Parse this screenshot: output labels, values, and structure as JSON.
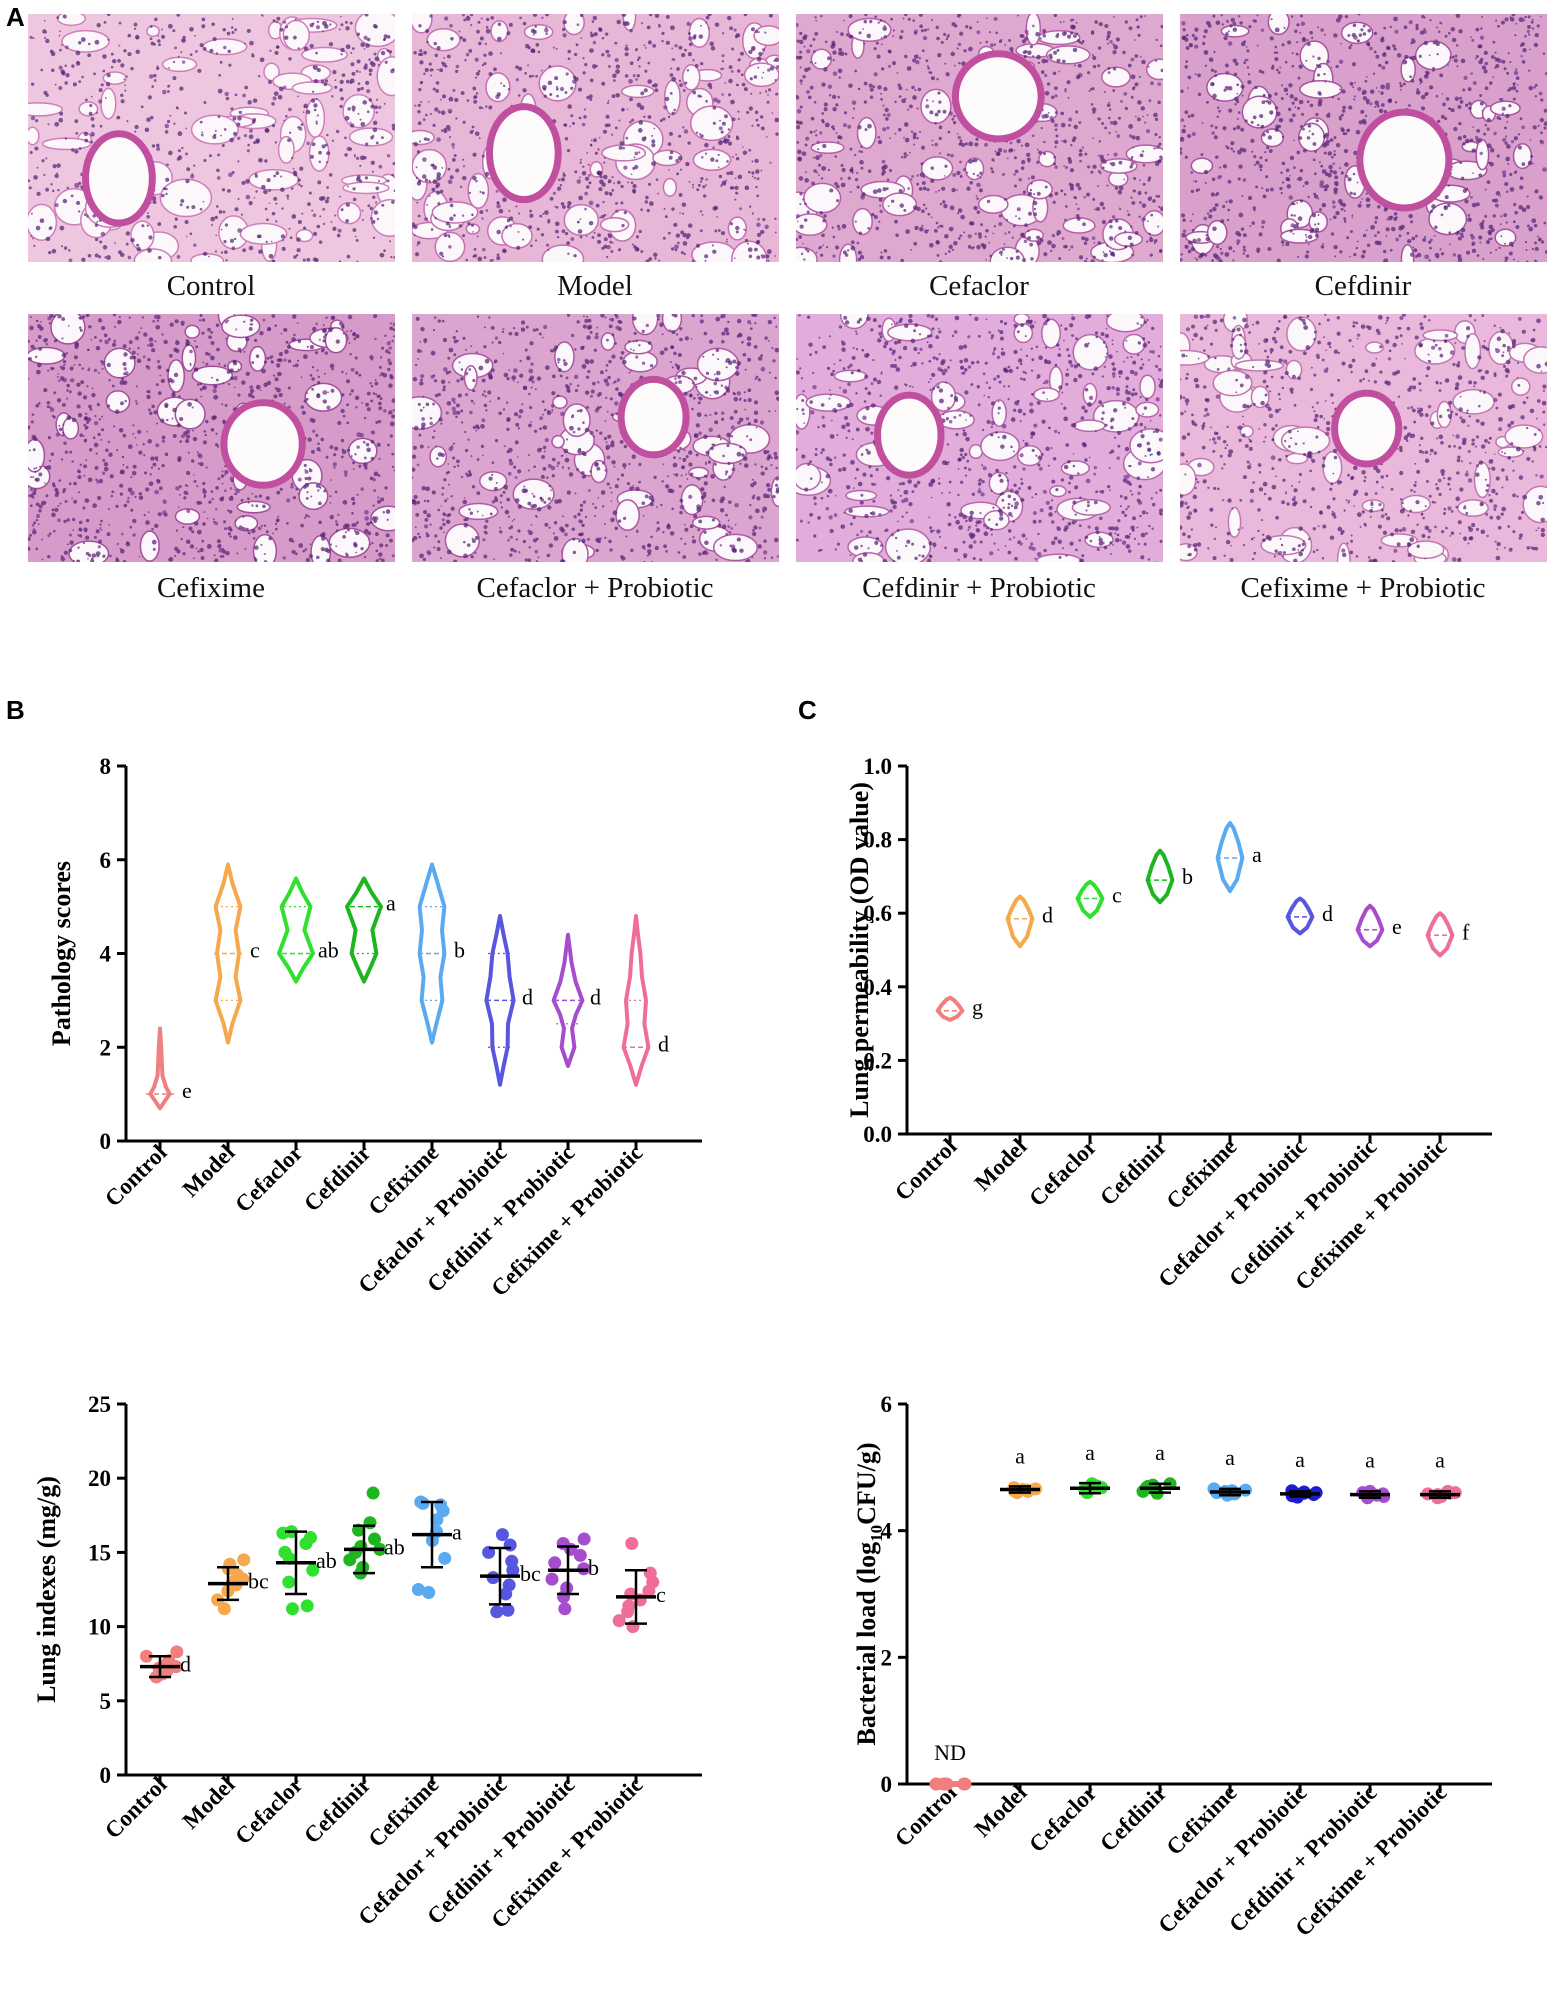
{
  "panel_labels": {
    "a": "A",
    "b": "B",
    "c": "C"
  },
  "micrographs": [
    {
      "label": "Control",
      "tint": "#efc6df",
      "tissue": "#cf7eb9",
      "density": 0.25
    },
    {
      "label": "Model",
      "tint": "#e8b6d7",
      "tissue": "#c470b1",
      "density": 0.45
    },
    {
      "label": "Cefaclor",
      "tint": "#dfa8cf",
      "tissue": "#b65fa8",
      "density": 0.6
    },
    {
      "label": "Cefdinir",
      "tint": "#d9a0cc",
      "tissue": "#a7549e",
      "density": 0.65
    },
    {
      "label": "Cefixime",
      "tint": "#d79bc9",
      "tissue": "#a24f9c",
      "density": 0.7
    },
    {
      "label": "Cefaclor + Probiotic",
      "tint": "#dca5cf",
      "tissue": "#ad58a3",
      "density": 0.6
    },
    {
      "label": "Cefdinir + Probiotic",
      "tint": "#e2addb",
      "tissue": "#b566ab",
      "density": 0.5
    },
    {
      "label": "Cefixime + Probiotic",
      "tint": "#eab8da",
      "tissue": "#c277b3",
      "density": 0.4
    }
  ],
  "chart_data": [
    {
      "type": "violin",
      "panel": "B",
      "ylabel": "Pathology scores",
      "ylim": [
        0,
        8
      ],
      "yticks": [
        0,
        2,
        4,
        6,
        8
      ],
      "categories": [
        "Control",
        "Model",
        "Cefaclor",
        "Cefdinir",
        "Cefixime",
        "Cefaclor + Probiotic",
        "Cefdinir + Probiotic",
        "Cefixime + Probiotic"
      ],
      "colors": [
        "#f08080",
        "#f5a84c",
        "#2fe02f",
        "#1fb51f",
        "#5aaaf0",
        "#5656e0",
        "#a64dcf",
        "#ee6d9a"
      ],
      "median": [
        1,
        4,
        4,
        5,
        4,
        3,
        3,
        2
      ],
      "q1": [
        1,
        3,
        4,
        4,
        3,
        2,
        2.5,
        2
      ],
      "q3": [
        1,
        5,
        5,
        5,
        5,
        4,
        3,
        3
      ],
      "range": [
        [
          0.7,
          2.4
        ],
        [
          2.1,
          5.9
        ],
        [
          3.4,
          5.6
        ],
        [
          3.4,
          5.6
        ],
        [
          2.1,
          5.9
        ],
        [
          1.2,
          4.8
        ],
        [
          1.6,
          4.4
        ],
        [
          1.2,
          4.8
        ]
      ],
      "shapes": [
        [
          [
            0.7,
            0
          ],
          [
            0.9,
            0.32
          ],
          [
            1,
            0.48
          ],
          [
            1.15,
            0.3
          ],
          [
            1.4,
            0.12
          ],
          [
            2,
            0.06
          ],
          [
            2.4,
            0
          ]
        ],
        [
          [
            2.1,
            0
          ],
          [
            2.5,
            0.22
          ],
          [
            3,
            0.62
          ],
          [
            3.5,
            0.38
          ],
          [
            4,
            0.55
          ],
          [
            4.5,
            0.38
          ],
          [
            5,
            0.62
          ],
          [
            5.5,
            0.22
          ],
          [
            5.9,
            0
          ]
        ],
        [
          [
            3.4,
            0
          ],
          [
            3.7,
            0.38
          ],
          [
            4,
            0.85
          ],
          [
            4.5,
            0.42
          ],
          [
            5,
            0.72
          ],
          [
            5.3,
            0.32
          ],
          [
            5.6,
            0
          ]
        ],
        [
          [
            3.4,
            0
          ],
          [
            3.7,
            0.32
          ],
          [
            4,
            0.62
          ],
          [
            4.5,
            0.42
          ],
          [
            5,
            0.85
          ],
          [
            5.3,
            0.38
          ],
          [
            5.6,
            0
          ]
        ],
        [
          [
            2.1,
            0
          ],
          [
            2.5,
            0.22
          ],
          [
            3,
            0.52
          ],
          [
            3.5,
            0.42
          ],
          [
            4,
            0.62
          ],
          [
            4.5,
            0.5
          ],
          [
            5,
            0.62
          ],
          [
            5.5,
            0.28
          ],
          [
            5.9,
            0
          ]
        ],
        [
          [
            1.2,
            0
          ],
          [
            1.6,
            0.18
          ],
          [
            2,
            0.38
          ],
          [
            2.5,
            0.4
          ],
          [
            3,
            0.68
          ],
          [
            3.5,
            0.48
          ],
          [
            4,
            0.38
          ],
          [
            4.4,
            0.18
          ],
          [
            4.8,
            0
          ]
        ],
        [
          [
            1.6,
            0
          ],
          [
            2,
            0.32
          ],
          [
            2.4,
            0.2
          ],
          [
            2.7,
            0.4
          ],
          [
            3,
            0.72
          ],
          [
            3.4,
            0.38
          ],
          [
            3.8,
            0.18
          ],
          [
            4.4,
            0
          ]
        ],
        [
          [
            1.2,
            0
          ],
          [
            1.6,
            0.28
          ],
          [
            2,
            0.62
          ],
          [
            2.5,
            0.42
          ],
          [
            3,
            0.5
          ],
          [
            3.5,
            0.3
          ],
          [
            4,
            0.22
          ],
          [
            4.4,
            0.1
          ],
          [
            4.8,
            0
          ]
        ]
      ],
      "letters": [
        "e",
        "c",
        "ab",
        "a",
        "b",
        "d",
        "d",
        "d"
      ]
    },
    {
      "type": "violin",
      "panel": "C",
      "ylabel": "Lung permeability (OD value)",
      "ylim": [
        0.0,
        1.0
      ],
      "yticks": [
        "0.0",
        "0.2",
        "0.4",
        "0.6",
        "0.8",
        "1.0"
      ],
      "categories": [
        "Control",
        "Model",
        "Cefaclor",
        "Cefdinir",
        "Cefixime",
        "Cefaclor + Probiotic",
        "Cefdinir + Probiotic",
        "Cefixime + Probiotic"
      ],
      "colors": [
        "#f08080",
        "#f5a84c",
        "#2fe02f",
        "#1fb51f",
        "#5aaaf0",
        "#5656e0",
        "#a64dcf",
        "#ee6d9a"
      ],
      "median": [
        0.335,
        0.585,
        0.64,
        0.69,
        0.75,
        0.59,
        0.555,
        0.54
      ],
      "range": [
        [
          0.31,
          0.37
        ],
        [
          0.51,
          0.645
        ],
        [
          0.59,
          0.685
        ],
        [
          0.63,
          0.77
        ],
        [
          0.66,
          0.845
        ],
        [
          0.545,
          0.64
        ],
        [
          0.51,
          0.62
        ],
        [
          0.485,
          0.6
        ]
      ],
      "letters": [
        "g",
        "d",
        "c",
        "b",
        "a",
        "d",
        "e",
        "f"
      ]
    },
    {
      "type": "scatter",
      "panel": "B",
      "ylabel": "Lung indexes (mg/g)",
      "ylim": [
        0,
        25
      ],
      "yticks": [
        0,
        5,
        10,
        15,
        20,
        25
      ],
      "categories": [
        "Control",
        "Model",
        "Cefaclor",
        "Cefdinir",
        "Cefixime",
        "Cefaclor + Probiotic",
        "Cefdinir + Probiotic",
        "Cefixime + Probiotic"
      ],
      "colors": [
        "#f08080",
        "#f5a84c",
        "#2fe02f",
        "#1fb51f",
        "#5aaaf0",
        "#5656e0",
        "#a64dcf",
        "#ee6d9a"
      ],
      "mean": [
        7.3,
        12.9,
        14.3,
        15.2,
        16.2,
        13.4,
        13.8,
        12.0
      ],
      "sd": [
        0.7,
        1.1,
        2.1,
        1.6,
        2.2,
        1.9,
        1.6,
        1.8
      ],
      "points": [
        [
          6.6,
          6.9,
          7.0,
          7.2,
          7.3,
          7.5,
          7.7,
          8.0,
          8.3,
          6.8
        ],
        [
          11.2,
          11.8,
          12.4,
          12.8,
          13.0,
          13.2,
          13.5,
          13.9,
          14.2,
          14.5
        ],
        [
          11.2,
          11.4,
          13.0,
          13.8,
          14.6,
          15.0,
          15.6,
          16.0,
          16.3,
          16.4
        ],
        [
          13.6,
          14.0,
          14.5,
          15.0,
          15.2,
          15.4,
          15.9,
          16.5,
          17.0,
          19.0
        ],
        [
          12.3,
          12.5,
          14.6,
          15.8,
          16.4,
          17.2,
          17.8,
          18.2,
          18.3,
          18.4
        ],
        [
          11.0,
          11.1,
          12.2,
          12.8,
          13.3,
          13.8,
          14.4,
          15.0,
          15.5,
          16.2
        ],
        [
          11.2,
          12.0,
          12.6,
          13.2,
          13.9,
          14.3,
          14.8,
          15.2,
          15.6,
          15.9
        ],
        [
          10.0,
          10.4,
          11.0,
          11.4,
          11.8,
          12.2,
          12.4,
          13.0,
          13.6,
          15.6
        ]
      ],
      "letters": [
        "d",
        "bc",
        "ab",
        "ab",
        "a",
        "bc",
        "b",
        "c"
      ]
    },
    {
      "type": "scatter",
      "panel": "C",
      "ylabel": "Bacterial load (log10CFU/g)",
      "ylabel_parts": [
        "Bacterial load (log",
        "10",
        "CFU/g)"
      ],
      "ylim": [
        0,
        6
      ],
      "yticks": [
        0,
        2,
        4,
        6
      ],
      "categories": [
        "Control",
        "Model",
        "Cefaclor",
        "Cefdinir",
        "Cefixime",
        "Cefaclor + Probiotic",
        "Cefdinir + Probiotic",
        "Cefixime + Probiotic"
      ],
      "colors": [
        "#f08080",
        "#f5a84c",
        "#2fe02f",
        "#1fb51f",
        "#5aaaf0",
        "#1d1dcf",
        "#a64dcf",
        "#ee6d9a"
      ],
      "mean": [
        0,
        4.65,
        4.67,
        4.67,
        4.61,
        4.58,
        4.57,
        4.57
      ],
      "sd": [
        0,
        0.05,
        0.08,
        0.07,
        0.05,
        0.04,
        0.05,
        0.05
      ],
      "points": [
        [
          0,
          0,
          0,
          0,
          0,
          0,
          0,
          0
        ],
        [
          4.6,
          4.62,
          4.64,
          4.65,
          4.66,
          4.68,
          4.63,
          4.67
        ],
        [
          4.6,
          4.63,
          4.66,
          4.68,
          4.72,
          4.74,
          4.65,
          4.7
        ],
        [
          4.59,
          4.62,
          4.66,
          4.68,
          4.72,
          4.74,
          4.65,
          4.7
        ],
        [
          4.56,
          4.58,
          4.6,
          4.62,
          4.64,
          4.66,
          4.61,
          4.63
        ],
        [
          4.53,
          4.55,
          4.57,
          4.59,
          4.61,
          4.63,
          4.58,
          4.6
        ],
        [
          4.52,
          4.54,
          4.56,
          4.58,
          4.6,
          4.62,
          4.57,
          4.59
        ],
        [
          4.52,
          4.54,
          4.56,
          4.58,
          4.6,
          4.62,
          4.57,
          4.59
        ]
      ],
      "letters": [
        "ND",
        "a",
        "a",
        "a",
        "a",
        "a",
        "a",
        "a"
      ]
    }
  ]
}
